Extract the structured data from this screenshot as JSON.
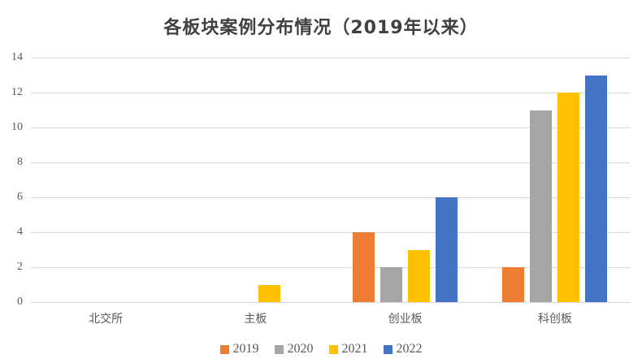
{
  "chart_data": {
    "type": "bar",
    "title": "各板块案例分布情况（2019年以来）",
    "categories": [
      "北交所",
      "主板",
      "创业板",
      "科创板"
    ],
    "series": [
      {
        "name": "2019",
        "color": "#ED7D31",
        "values": [
          0,
          0,
          4,
          2
        ]
      },
      {
        "name": "2020",
        "color": "#A5A5A5",
        "values": [
          0,
          0,
          2,
          11
        ]
      },
      {
        "name": "2021",
        "color": "#FFC000",
        "values": [
          0,
          1,
          3,
          12
        ]
      },
      {
        "name": "2022",
        "color": "#4472C4",
        "values": [
          0,
          0,
          6,
          13
        ]
      }
    ],
    "xlabel": "",
    "ylabel": "",
    "ylim": [
      0,
      14
    ],
    "ytick_step": 2,
    "ytick_labels": [
      "0",
      "2",
      "4",
      "6",
      "8",
      "10",
      "12",
      "14"
    ],
    "grid": "horizontal",
    "legend_position": "bottom"
  },
  "colors": {
    "background": "#FFFFFF",
    "gridline": "#D9D9D9",
    "axis_line": "#D9D9D9",
    "title_text": "#404040",
    "tick_label_text": "#595959",
    "category_label_text": "#595959",
    "legend_text": "#595959"
  }
}
